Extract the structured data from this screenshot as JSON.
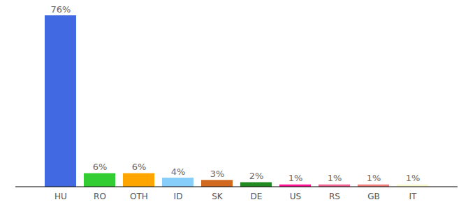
{
  "chart_data": {
    "type": "bar",
    "categories": [
      "HU",
      "RO",
      "OTH",
      "ID",
      "SK",
      "DE",
      "US",
      "RS",
      "GB",
      "IT"
    ],
    "values": [
      76,
      6,
      6,
      4,
      3,
      2,
      1,
      1,
      1,
      1
    ],
    "value_labels": [
      "76%",
      "6%",
      "6%",
      "4%",
      "3%",
      "2%",
      "1%",
      "1%",
      "1%",
      "1%"
    ],
    "colors": [
      "#4169e1",
      "#32cd32",
      "#ffa500",
      "#87cefa",
      "#d2691e",
      "#228b22",
      "#ff1493",
      "#f06292",
      "#f08080",
      "#fafad2"
    ],
    "ylim": [
      0,
      76
    ],
    "data_labels": true,
    "tick_labels": "x"
  }
}
